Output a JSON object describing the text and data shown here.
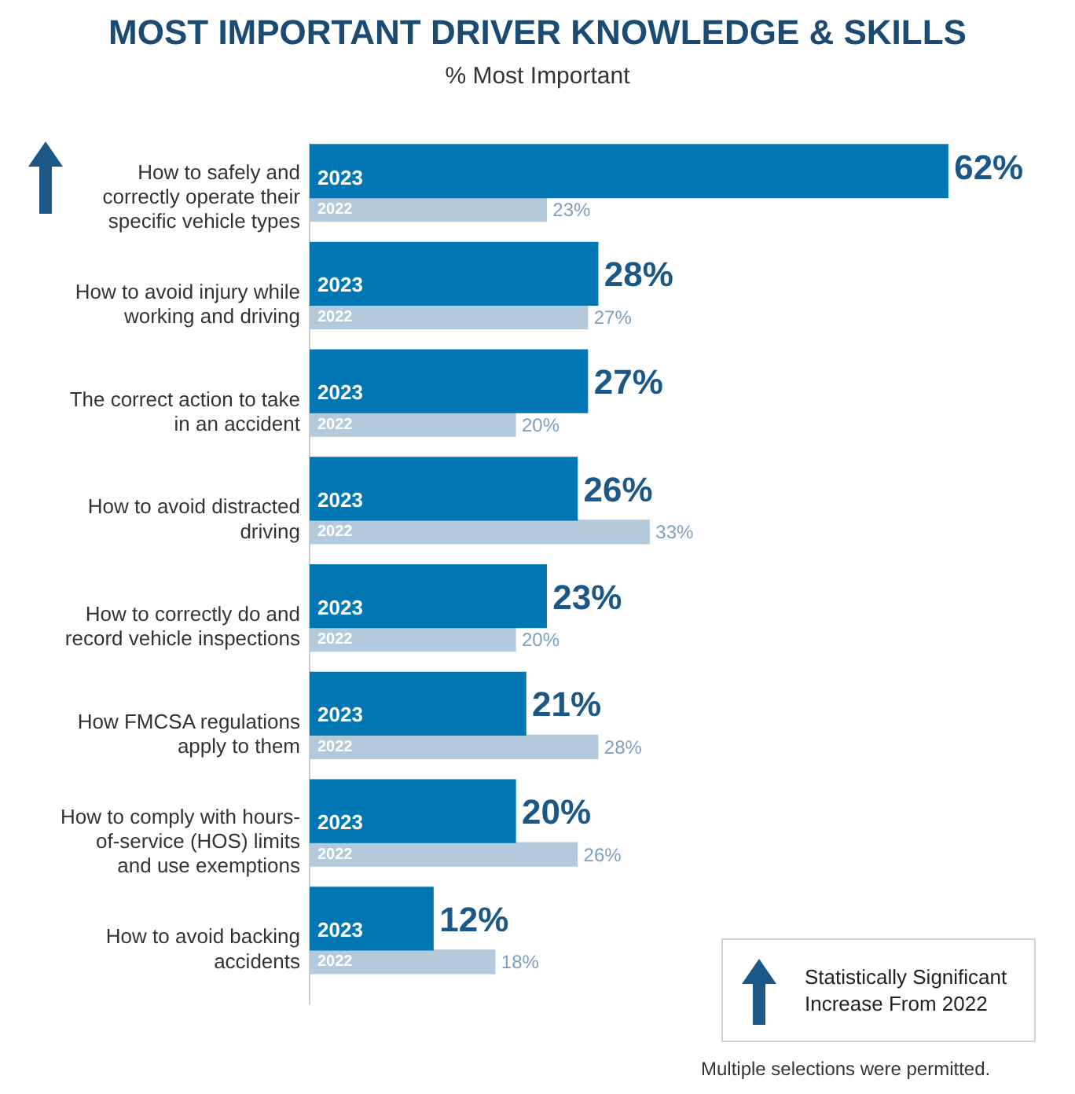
{
  "chart_data": {
    "type": "bar",
    "orientation": "horizontal",
    "title": "MOST IMPORTANT DRIVER KNOWLEDGE & SKILLS",
    "subtitle": "% Most Important",
    "categories": [
      "How to safely and correctly operate their specific vehicle types",
      "How to avoid injury while working and driving",
      "The correct action to take in an accident",
      "How to avoid distracted driving",
      "How to correctly do and record vehicle inspections",
      "How FMCSA regulations apply to them",
      "How to comply with hours-of-service (HOS) limits and use exemptions",
      "How to avoid backing accidents"
    ],
    "series": [
      {
        "name": "2023",
        "color": "#0077b3",
        "values": [
          62,
          28,
          27,
          26,
          23,
          21,
          20,
          12
        ],
        "value_labels": [
          "62%",
          "28%",
          "27%",
          "26%",
          "23%",
          "21%",
          "20%",
          "12%"
        ]
      },
      {
        "name": "2022",
        "color": "#b3c9dc",
        "values": [
          23,
          27,
          20,
          33,
          20,
          28,
          26,
          18
        ],
        "value_labels": [
          "23%",
          "27%",
          "20%",
          "33%",
          "20%",
          "28%",
          "26%",
          "18%"
        ]
      }
    ],
    "annotations": [
      "Statistically Significant Increase From 2022",
      "Multiple selections were permitted."
    ]
  }
}
